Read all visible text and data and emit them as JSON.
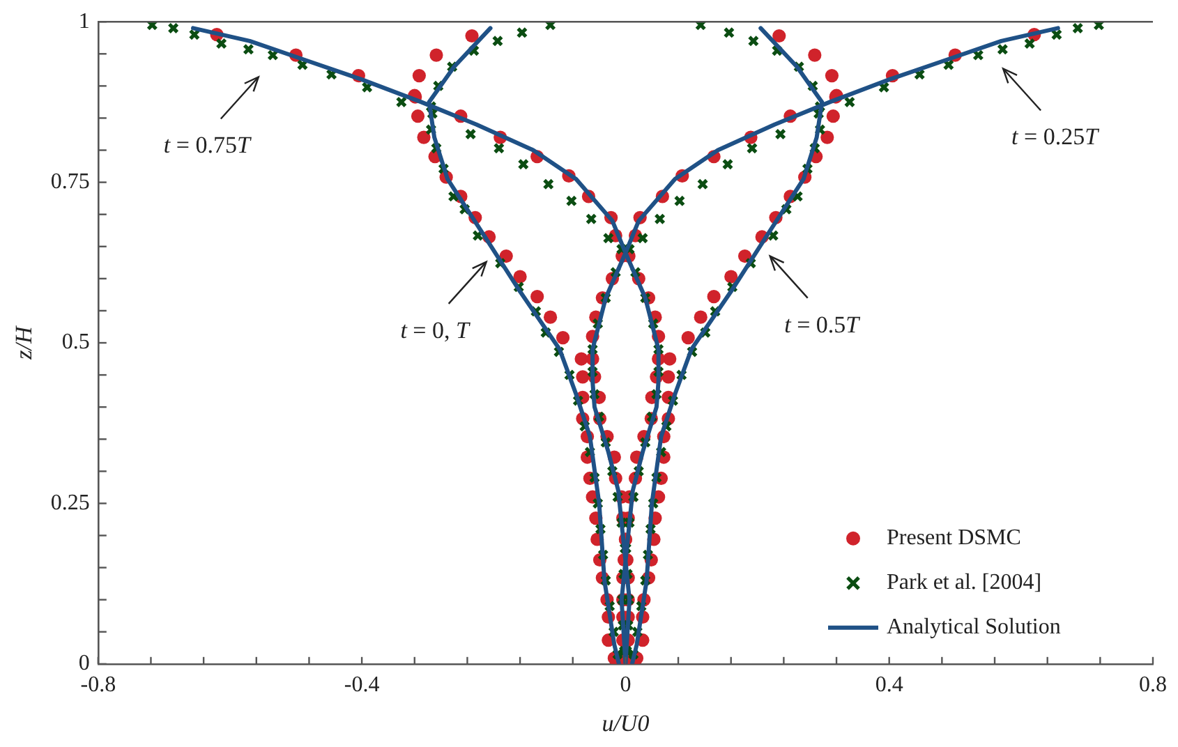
{
  "chart_data": {
    "type": "scatter",
    "xlabel": "u/U0",
    "ylabel": "z/H",
    "xlim": [
      -0.8,
      0.8
    ],
    "xticks": [
      -0.8,
      {
        "value": -0.72,
        "label": null
      },
      {
        "value": -0.64,
        "label": null
      },
      {
        "value": -0.56,
        "label": null
      },
      {
        "value": -0.48,
        "label": null
      },
      -0.4,
      {
        "value": -0.32,
        "label": null
      },
      {
        "value": -0.24,
        "label": null
      },
      {
        "value": -0.16,
        "label": null
      },
      {
        "value": -0.08,
        "label": null
      },
      0,
      {
        "value": 0.08,
        "label": null
      },
      {
        "value": 0.16,
        "label": null
      },
      {
        "value": 0.24,
        "label": null
      },
      {
        "value": 0.32,
        "label": null
      },
      0.4,
      {
        "value": 0.48,
        "label": null
      },
      {
        "value": 0.56,
        "label": null
      },
      {
        "value": 0.64,
        "label": null
      },
      {
        "value": 0.72,
        "label": null
      },
      0.8
    ],
    "ylim": [
      0,
      1
    ],
    "yticks": [
      0,
      {
        "value": 0.05,
        "label": null
      },
      {
        "value": 0.1,
        "label": null
      },
      {
        "value": 0.15,
        "label": null
      },
      {
        "value": 0.2,
        "label": null
      },
      0.25,
      {
        "value": 0.3,
        "label": null
      },
      {
        "value": 0.35,
        "label": null
      },
      {
        "value": 0.4,
        "label": null
      },
      {
        "value": 0.45,
        "label": null
      },
      0.5,
      {
        "value": 0.55,
        "label": null
      },
      {
        "value": 0.6,
        "label": null
      },
      {
        "value": 0.65,
        "label": null
      },
      {
        "value": 0.7,
        "label": null
      },
      0.75,
      {
        "value": 0.8,
        "label": null
      },
      {
        "value": 0.85,
        "label": null
      },
      {
        "value": 0.9,
        "label": null
      },
      {
        "value": 0.95,
        "label": null
      },
      1
    ],
    "grid": false,
    "legend": "bottom right",
    "series": [
      {
        "name": "Present DSMC",
        "type": "scatter",
        "marker": "circle",
        "color": "#d0232b",
        "x": [
          -0.233,
          -0.287,
          -0.313,
          -0.319,
          -0.315,
          -0.306,
          -0.289,
          -0.272,
          -0.25,
          -0.228,
          -0.207,
          -0.181,
          -0.16,
          -0.134,
          -0.114,
          -0.095,
          -0.067,
          -0.065,
          -0.065,
          -0.065,
          -0.058,
          -0.058,
          -0.054,
          -0.05,
          -0.045,
          -0.043,
          -0.039,
          -0.035,
          -0.028,
          -0.026,
          -0.026,
          -0.017,
          0.62,
          0.5,
          0.405,
          0.32,
          0.25,
          0.19,
          0.134,
          0.086,
          0.056,
          0.022,
          0.015,
          -0.005,
          -0.02,
          -0.035,
          -0.045,
          -0.05,
          -0.05,
          -0.047,
          -0.04,
          -0.039,
          -0.028,
          -0.017,
          -0.015,
          -0.006,
          -0.004,
          0,
          0.002,
          0.004,
          0.004,
          0.004,
          0.004,
          0.004,
          0.233,
          0.287,
          0.313,
          0.319,
          0.315,
          0.306,
          0.289,
          0.272,
          0.25,
          0.228,
          0.207,
          0.181,
          0.16,
          0.134,
          0.114,
          0.095,
          0.067,
          0.065,
          0.065,
          0.065,
          0.058,
          0.058,
          0.054,
          0.05,
          0.045,
          0.043,
          0.039,
          0.035,
          0.028,
          0.026,
          0.026,
          0.017,
          -0.62,
          -0.5,
          -0.405,
          -0.32,
          -0.25,
          -0.19,
          -0.134,
          -0.086,
          -0.056,
          -0.022,
          -0.015,
          0.005,
          0.02,
          0.035,
          0.045,
          0.05,
          0.05,
          0.047,
          0.04,
          0.039,
          0.028,
          0.017,
          0.015,
          0.006,
          0.004,
          0,
          -0.002,
          -0.004,
          -0.004,
          -0.004,
          -0.004,
          -0.004
        ],
        "values": [
          0.978,
          0.948,
          0.916,
          0.883,
          0.853,
          0.82,
          0.79,
          0.758,
          0.728,
          0.695,
          0.665,
          0.635,
          0.603,
          0.572,
          0.54,
          0.508,
          0.475,
          0.447,
          0.415,
          0.382,
          0.354,
          0.322,
          0.289,
          0.26,
          0.227,
          0.194,
          0.162,
          0.134,
          0.1,
          0.073,
          0.037,
          0.009,
          0.98,
          0.948,
          0.916,
          0.885,
          0.853,
          0.82,
          0.79,
          0.76,
          0.728,
          0.695,
          0.667,
          0.635,
          0.6,
          0.57,
          0.54,
          0.51,
          0.475,
          0.447,
          0.415,
          0.382,
          0.354,
          0.322,
          0.289,
          0.26,
          0.227,
          0.194,
          0.162,
          0.134,
          0.1,
          0.073,
          0.037,
          0.009,
          0.978,
          0.948,
          0.916,
          0.883,
          0.853,
          0.82,
          0.79,
          0.758,
          0.728,
          0.695,
          0.665,
          0.635,
          0.603,
          0.572,
          0.54,
          0.508,
          0.475,
          0.447,
          0.415,
          0.382,
          0.354,
          0.322,
          0.289,
          0.26,
          0.227,
          0.194,
          0.162,
          0.134,
          0.1,
          0.073,
          0.037,
          0.009,
          0.98,
          0.948,
          0.916,
          0.885,
          0.853,
          0.82,
          0.79,
          0.76,
          0.728,
          0.695,
          0.667,
          0.635,
          0.6,
          0.57,
          0.54,
          0.51,
          0.475,
          0.447,
          0.415,
          0.382,
          0.354,
          0.322,
          0.289,
          0.26,
          0.227,
          0.194,
          0.162,
          0.134,
          0.1,
          0.073,
          0.037,
          0.009
        ]
      },
      {
        "name": "Park et al. [2004]",
        "type": "scatter",
        "marker": "cross",
        "color": "#0b4d12",
        "x": [
          -0.114,
          -0.157,
          -0.194,
          -0.23,
          -0.263,
          -0.284,
          -0.295,
          -0.295,
          -0.287,
          -0.276,
          -0.261,
          -0.244,
          -0.224,
          -0.19,
          -0.162,
          -0.136,
          -0.121,
          -0.101,
          -0.085,
          -0.072,
          -0.062,
          -0.054,
          -0.047,
          -0.042,
          -0.038,
          -0.034,
          -0.03,
          -0.024,
          -0.018,
          -0.012,
          0.718,
          0.686,
          0.654,
          0.613,
          0.572,
          0.535,
          0.49,
          0.446,
          0.392,
          0.34,
          0.293,
          0.235,
          0.192,
          0.155,
          0.117,
          0.082,
          0.052,
          0.026,
          0.006,
          -0.015,
          -0.03,
          -0.042,
          -0.05,
          -0.05,
          -0.047,
          -0.04,
          -0.03,
          -0.02,
          -0.012,
          -0.006,
          -0.001,
          0.003,
          0.005,
          0.004,
          0.002,
          0.114,
          0.157,
          0.194,
          0.23,
          0.263,
          0.284,
          0.295,
          0.295,
          0.287,
          0.276,
          0.261,
          0.244,
          0.224,
          0.19,
          0.162,
          0.136,
          0.121,
          0.101,
          0.085,
          0.072,
          0.062,
          0.054,
          0.047,
          0.042,
          0.038,
          0.034,
          0.03,
          0.024,
          0.018,
          0.012,
          -0.718,
          -0.686,
          -0.654,
          -0.613,
          -0.572,
          -0.535,
          -0.49,
          -0.446,
          -0.392,
          -0.34,
          -0.293,
          -0.235,
          -0.192,
          -0.155,
          -0.117,
          -0.082,
          -0.052,
          -0.026,
          -0.006,
          0.015,
          0.03,
          0.042,
          0.05,
          0.05,
          0.047,
          0.04,
          0.03,
          0.02,
          0.012,
          0.006,
          0.001,
          -0.003,
          -0.005,
          -0.004,
          -0.002
        ],
        "values": [
          0.995,
          0.983,
          0.97,
          0.955,
          0.93,
          0.9,
          0.868,
          0.832,
          0.803,
          0.771,
          0.728,
          0.708,
          0.667,
          0.624,
          0.587,
          0.549,
          0.516,
          0.486,
          0.45,
          0.41,
          0.37,
          0.33,
          0.29,
          0.25,
          0.21,
          0.17,
          0.13,
          0.09,
          0.05,
          0.015,
          0.995,
          0.99,
          0.98,
          0.966,
          0.957,
          0.948,
          0.933,
          0.918,
          0.898,
          0.875,
          0.857,
          0.825,
          0.803,
          0.778,
          0.747,
          0.721,
          0.693,
          0.663,
          0.646,
          0.61,
          0.57,
          0.53,
          0.49,
          0.455,
          0.42,
          0.385,
          0.345,
          0.3,
          0.26,
          0.22,
          0.18,
          0.14,
          0.1,
          0.06,
          0.02,
          0.995,
          0.983,
          0.97,
          0.955,
          0.93,
          0.9,
          0.868,
          0.832,
          0.803,
          0.771,
          0.728,
          0.708,
          0.667,
          0.624,
          0.587,
          0.549,
          0.516,
          0.486,
          0.45,
          0.41,
          0.37,
          0.33,
          0.29,
          0.25,
          0.21,
          0.17,
          0.13,
          0.09,
          0.05,
          0.015,
          0.995,
          0.99,
          0.98,
          0.966,
          0.957,
          0.948,
          0.933,
          0.918,
          0.898,
          0.875,
          0.857,
          0.825,
          0.803,
          0.778,
          0.747,
          0.721,
          0.693,
          0.663,
          0.646,
          0.61,
          0.57,
          0.53,
          0.49,
          0.455,
          0.42,
          0.385,
          0.345,
          0.3,
          0.26,
          0.22,
          0.18,
          0.14,
          0.1,
          0.06,
          0.02
        ]
      },
      {
        "name": "Analytical Solution",
        "type": "line",
        "marker": "none",
        "line_style": "solid",
        "color": "#1f5186",
        "x": [
          -0.205,
          -0.26,
          -0.298,
          -0.29,
          -0.27,
          -0.21,
          -0.16,
          -0.1,
          -0.075,
          -0.054,
          -0.04,
          -0.032,
          -0.017,
          -0.01,
          null,
          0.656,
          0.57,
          0.485,
          0.4,
          0.31,
          0.226,
          0.14,
          0.075,
          0.02,
          0,
          -0.03,
          -0.05,
          -0.05,
          -0.047,
          -0.026,
          -0.011,
          0.006,
          0,
          null,
          0.205,
          0.26,
          0.298,
          0.29,
          0.27,
          0.21,
          0.16,
          0.1,
          0.075,
          0.054,
          0.04,
          0.032,
          0.017,
          0.01,
          null,
          -0.656,
          -0.57,
          -0.485,
          -0.4,
          -0.31,
          -0.226,
          -0.14,
          -0.075,
          -0.02,
          0,
          0.03,
          0.05,
          0.05,
          0.047,
          0.026,
          0.011,
          -0.006,
          0
        ],
        "values": [
          0.99,
          0.93,
          0.875,
          0.82,
          0.755,
          0.66,
          0.58,
          0.49,
          0.42,
          0.354,
          0.25,
          0.13,
          0.03,
          0,
          null,
          0.99,
          0.97,
          0.94,
          0.91,
          0.875,
          0.84,
          0.8,
          0.755,
          0.69,
          0.64,
          0.57,
          0.49,
          0.44,
          0.4,
          0.33,
          0.27,
          0.1,
          0,
          null,
          0.99,
          0.93,
          0.875,
          0.82,
          0.755,
          0.66,
          0.58,
          0.49,
          0.42,
          0.354,
          0.25,
          0.13,
          0.03,
          0,
          null,
          0.99,
          0.97,
          0.94,
          0.91,
          0.875,
          0.84,
          0.8,
          0.755,
          0.69,
          0.64,
          0.57,
          0.49,
          0.44,
          0.4,
          0.33,
          0.27,
          0.1,
          0
        ]
      }
    ],
    "annotations": [
      "t = 0.75T",
      "t = 0.25T",
      "t = 0, T",
      "t = 0.5T"
    ]
  }
}
